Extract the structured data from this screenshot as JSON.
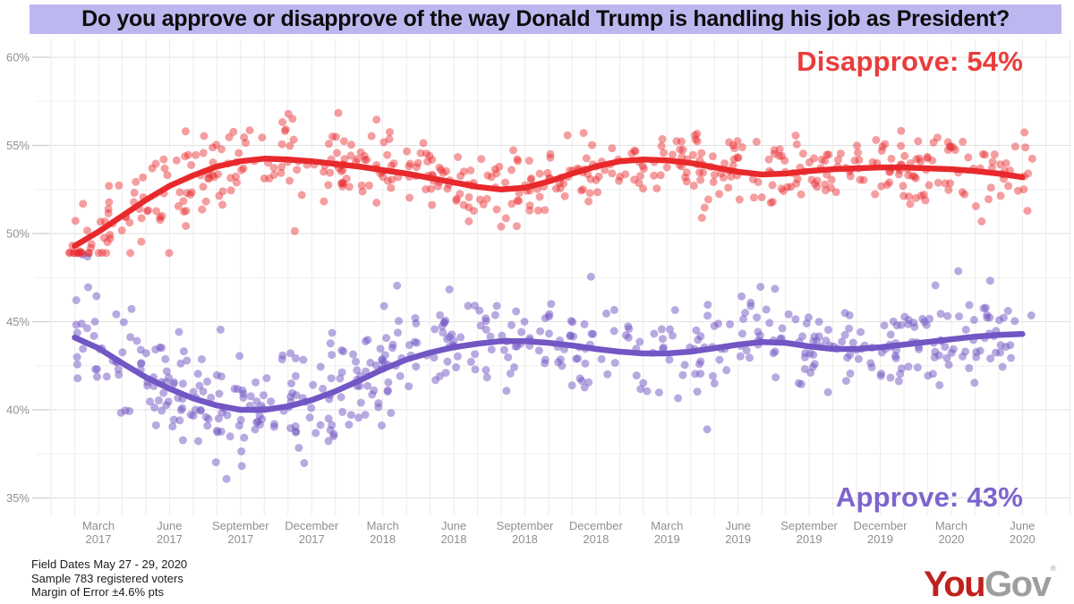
{
  "title": {
    "text": "Do you approve or disapprove of the way Donald Trump is handling his job as President?",
    "bg_color": "#bdb7f0",
    "text_color": "#0d0d0d"
  },
  "annotations": {
    "disapprove": "Disapprove: 54%",
    "approve": "Approve: 43%"
  },
  "colors": {
    "disapprove": "#e8292c",
    "disapprove_label": "#ea3c3a",
    "approve": "#7156c4",
    "approve_label": "#7d64cd",
    "grid_vertical": "#ececec",
    "grid_major": "#e2e2e2",
    "grid_minor": "#efefef",
    "tick_dash": "#cccccc",
    "axis_text": "#909090"
  },
  "footer": {
    "lines": [
      "Field Dates May 27 - 29, 2020",
      "Sample 783 registered voters",
      "Margin of Error ±4.6% pts"
    ]
  },
  "logo": {
    "part1": "You",
    "part2": "Gov",
    "registered": "®",
    "part1_color": "#c0211e",
    "part2_color": "#9e9e9e"
  },
  "chart_data": {
    "type": "scatter",
    "title": "Do you approve or disapprove of the way Donald Trump is handling his job as President?",
    "xlabel": "",
    "ylabel": "",
    "ylim": [
      35,
      60
    ],
    "grid": true,
    "y_axis": {
      "ticks": [
        {
          "label": "60%",
          "value": 60
        },
        {
          "label": "55%",
          "value": 55
        },
        {
          "label": "50%",
          "value": 50
        },
        {
          "label": "45%",
          "value": 45
        },
        {
          "label": "40%",
          "value": 40
        },
        {
          "label": "35%",
          "value": 35
        }
      ],
      "minor_step": 2.5
    },
    "x_axis": {
      "ticks": [
        {
          "month": "March",
          "year": "2017"
        },
        {
          "month": "June",
          "year": "2017"
        },
        {
          "month": "September",
          "year": "2017"
        },
        {
          "month": "December",
          "year": "2017"
        },
        {
          "month": "March",
          "year": "2018"
        },
        {
          "month": "June",
          "year": "2018"
        },
        {
          "month": "September",
          "year": "2018"
        },
        {
          "month": "December",
          "year": "2018"
        },
        {
          "month": "March",
          "year": "2019"
        },
        {
          "month": "June",
          "year": "2019"
        },
        {
          "month": "September",
          "year": "2019"
        },
        {
          "month": "December",
          "year": "2019"
        },
        {
          "month": "March",
          "year": "2020"
        },
        {
          "month": "June",
          "year": "2020"
        }
      ],
      "months_between_ticks": 3
    },
    "trend_month_start": -1,
    "series": [
      {
        "name": "Disapprove",
        "final_value": 54,
        "color": "#e8292c",
        "trend_values": [
          49.3,
          50.1,
          51.0,
          51.9,
          52.7,
          53.3,
          53.8,
          54.1,
          54.25,
          54.2,
          54.1,
          53.95,
          53.8,
          53.6,
          53.4,
          53.15,
          52.9,
          52.65,
          52.5,
          52.6,
          52.95,
          53.4,
          53.8,
          54.1,
          54.2,
          54.15,
          54.0,
          53.75,
          53.5,
          53.35,
          53.4,
          53.55,
          53.65,
          53.7,
          53.75,
          53.75,
          53.7,
          53.65,
          53.55,
          53.4,
          53.2
        ],
        "scatter": {
          "count": 530,
          "seed": 41,
          "sd_early": 1.35,
          "sd_late": 1.1,
          "early_cutoff_month": 8,
          "clamp": [
            48.9,
            59.4
          ],
          "opacity": 0.45
        }
      },
      {
        "name": "Approve",
        "final_value": 43,
        "color": "#7156c4",
        "trend_values": [
          44.1,
          43.5,
          42.65,
          41.85,
          41.2,
          40.65,
          40.25,
          40.0,
          40.0,
          40.2,
          40.55,
          41.05,
          41.65,
          42.3,
          42.85,
          43.25,
          43.55,
          43.75,
          43.9,
          43.9,
          43.8,
          43.65,
          43.45,
          43.3,
          43.2,
          43.2,
          43.3,
          43.5,
          43.7,
          43.85,
          43.8,
          43.6,
          43.45,
          43.45,
          43.55,
          43.7,
          43.85,
          44.0,
          44.15,
          44.25,
          44.3
        ],
        "scatter": {
          "count": 540,
          "seed": 97,
          "sd_early": 1.6,
          "sd_late": 1.3,
          "early_cutoff_month": 10,
          "clamp": [
            35.9,
            48.8
          ],
          "opacity": 0.5
        }
      }
    ],
    "scatter_month_range": [
      -1.25,
      39.45
    ],
    "point_radius": 4.5,
    "trend_line_width": 6.5
  }
}
